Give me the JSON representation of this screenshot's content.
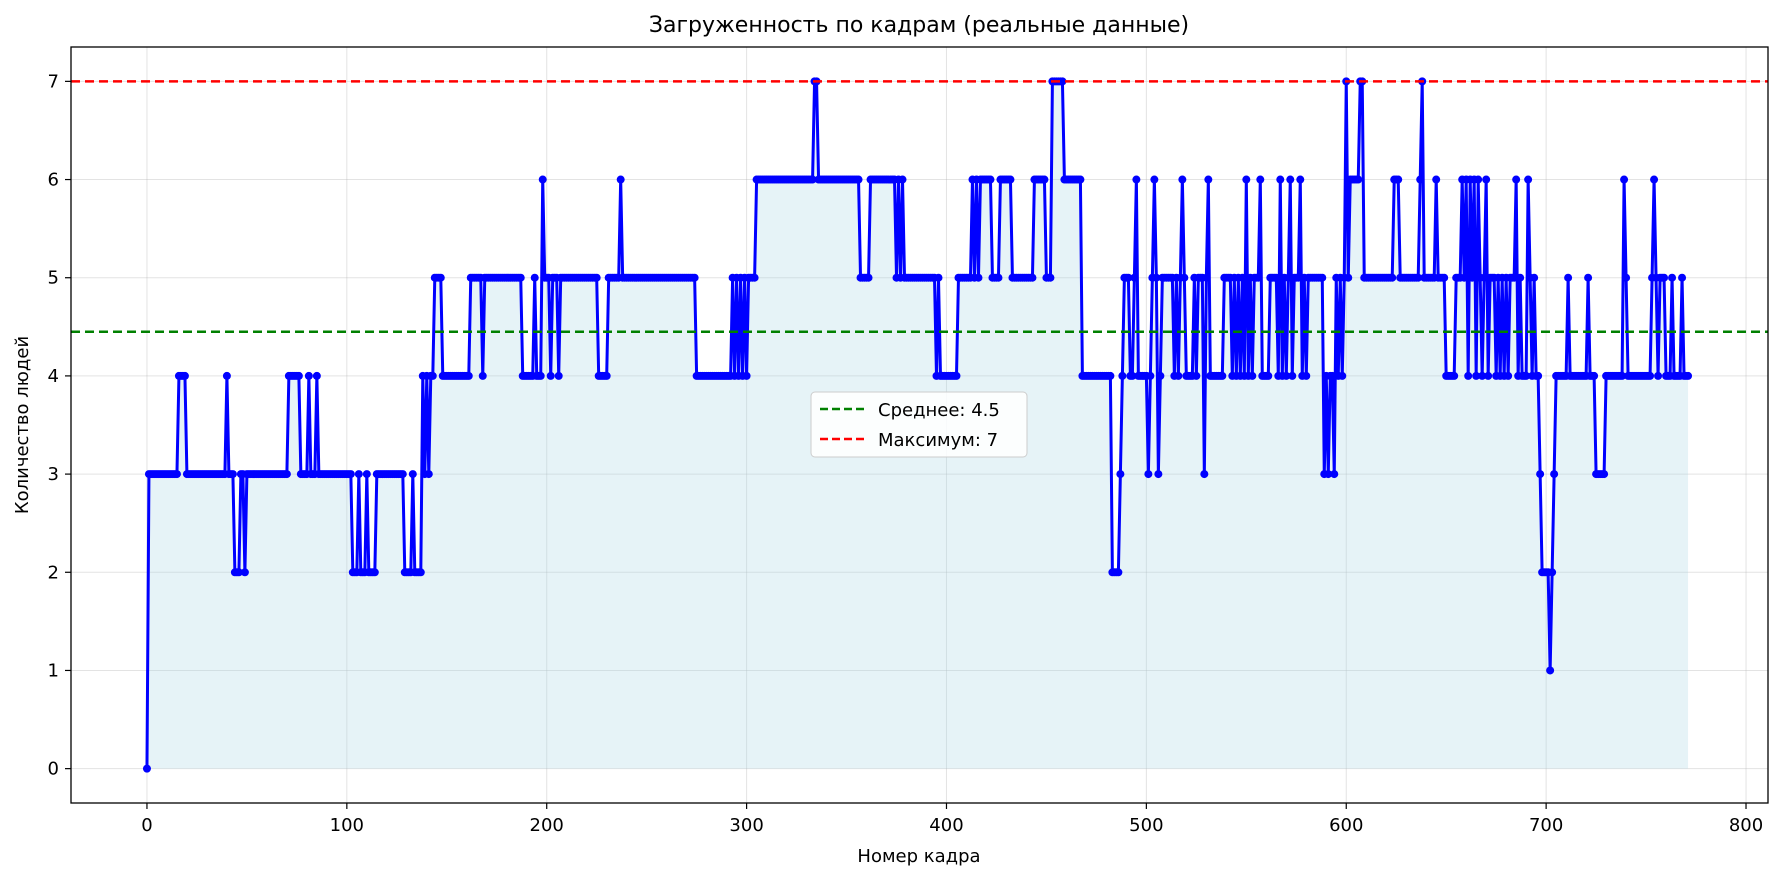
{
  "chart_data": {
    "type": "line",
    "title": "Загруженность по кадрам (реальные данные)",
    "xlabel": "Номер кадра",
    "ylabel": "Количество людей",
    "xlim": [
      -38,
      811
    ],
    "ylim": [
      -0.35,
      7.35
    ],
    "xticks": [
      0,
      100,
      200,
      300,
      400,
      500,
      600,
      700,
      800
    ],
    "yticks": [
      0,
      1,
      2,
      3,
      4,
      5,
      6,
      7
    ],
    "grid": true,
    "legend_position": "center",
    "colors": {
      "line": "#0000ff",
      "fill": "#add8e6",
      "mean": "#008000",
      "max": "#ff0000"
    },
    "reference_lines": [
      {
        "name": "mean",
        "label": "Среднее: 4.5",
        "value": 4.45,
        "color": "#008000"
      },
      {
        "name": "max",
        "label": "Максимум: 7",
        "value": 7,
        "color": "#ff0000"
      }
    ],
    "series": [
      {
        "points": [
          [
            0,
            0
          ],
          [
            1,
            3
          ],
          [
            15,
            3
          ],
          [
            16,
            4
          ],
          [
            19,
            4
          ],
          [
            20,
            3
          ],
          [
            39,
            3
          ],
          [
            40,
            4
          ],
          [
            41,
            3
          ],
          [
            43,
            3
          ],
          [
            44,
            2
          ],
          [
            46,
            2
          ],
          [
            47,
            3
          ],
          [
            48,
            3
          ],
          [
            49,
            2
          ],
          [
            50,
            3
          ],
          [
            70,
            3
          ],
          [
            71,
            4
          ],
          [
            76,
            4
          ],
          [
            77,
            3
          ],
          [
            80,
            3
          ],
          [
            81,
            4
          ],
          [
            82,
            3
          ],
          [
            84,
            3
          ],
          [
            85,
            4
          ],
          [
            86,
            3
          ],
          [
            102,
            3
          ],
          [
            103,
            2
          ],
          [
            105,
            2
          ],
          [
            106,
            3
          ],
          [
            107,
            2
          ],
          [
            109,
            2
          ],
          [
            110,
            3
          ],
          [
            111,
            2
          ],
          [
            114,
            2
          ],
          [
            115,
            3
          ],
          [
            128,
            3
          ],
          [
            129,
            2
          ],
          [
            132,
            2
          ],
          [
            133,
            3
          ],
          [
            134,
            2
          ],
          [
            137,
            2
          ],
          [
            138,
            4
          ],
          [
            139,
            3
          ],
          [
            140,
            4
          ],
          [
            141,
            3
          ],
          [
            142,
            4
          ],
          [
            143,
            4
          ],
          [
            144,
            5
          ],
          [
            147,
            5
          ],
          [
            148,
            4
          ],
          [
            161,
            4
          ],
          [
            162,
            5
          ],
          [
            167,
            5
          ],
          [
            168,
            4
          ],
          [
            169,
            5
          ],
          [
            187,
            5
          ],
          [
            188,
            4
          ],
          [
            193,
            4
          ],
          [
            194,
            5
          ],
          [
            195,
            4
          ],
          [
            197,
            4
          ],
          [
            198,
            6
          ],
          [
            199,
            5
          ],
          [
            201,
            5
          ],
          [
            202,
            4
          ],
          [
            203,
            5
          ],
          [
            205,
            5
          ],
          [
            206,
            4
          ],
          [
            207,
            5
          ],
          [
            225,
            5
          ],
          [
            226,
            4
          ],
          [
            230,
            4
          ],
          [
            231,
            5
          ],
          [
            236,
            5
          ],
          [
            237,
            6
          ],
          [
            238,
            5
          ],
          [
            274,
            5
          ],
          [
            275,
            4
          ],
          [
            292,
            4
          ],
          [
            293,
            5
          ],
          [
            294,
            4
          ],
          [
            295,
            5
          ],
          [
            296,
            4
          ],
          [
            297,
            5
          ],
          [
            298,
            4
          ],
          [
            299,
            5
          ],
          [
            300,
            4
          ],
          [
            301,
            5
          ],
          [
            304,
            5
          ],
          [
            305,
            6
          ],
          [
            333,
            6
          ],
          [
            334,
            7
          ],
          [
            335,
            7
          ],
          [
            336,
            6
          ],
          [
            356,
            6
          ],
          [
            357,
            5
          ],
          [
            361,
            5
          ],
          [
            362,
            6
          ],
          [
            374,
            6
          ],
          [
            375,
            5
          ],
          [
            376,
            6
          ],
          [
            377,
            5
          ],
          [
            378,
            6
          ],
          [
            379,
            5
          ],
          [
            394,
            5
          ],
          [
            395,
            4
          ],
          [
            396,
            5
          ],
          [
            397,
            4
          ],
          [
            405,
            4
          ],
          [
            406,
            5
          ],
          [
            412,
            5
          ],
          [
            413,
            6
          ],
          [
            414,
            5
          ],
          [
            415,
            6
          ],
          [
            416,
            5
          ],
          [
            417,
            6
          ],
          [
            422,
            6
          ],
          [
            423,
            5
          ],
          [
            426,
            5
          ],
          [
            427,
            6
          ],
          [
            432,
            6
          ],
          [
            433,
            5
          ],
          [
            443,
            5
          ],
          [
            444,
            6
          ],
          [
            449,
            6
          ],
          [
            450,
            5
          ],
          [
            452,
            5
          ],
          [
            453,
            7
          ],
          [
            458,
            7
          ],
          [
            459,
            6
          ],
          [
            467,
            6
          ],
          [
            468,
            4
          ],
          [
            482,
            4
          ],
          [
            483,
            2
          ],
          [
            486,
            2
          ],
          [
            487,
            3
          ],
          [
            488,
            4
          ],
          [
            489,
            5
          ],
          [
            491,
            5
          ],
          [
            492,
            4
          ],
          [
            494,
            5
          ],
          [
            495,
            6
          ],
          [
            496,
            4
          ],
          [
            500,
            4
          ],
          [
            501,
            3
          ],
          [
            502,
            4
          ],
          [
            503,
            5
          ],
          [
            504,
            6
          ],
          [
            505,
            5
          ],
          [
            506,
            3
          ],
          [
            507,
            4
          ],
          [
            508,
            5
          ],
          [
            513,
            5
          ],
          [
            514,
            4
          ],
          [
            515,
            5
          ],
          [
            516,
            4
          ],
          [
            517,
            5
          ],
          [
            518,
            6
          ],
          [
            519,
            5
          ],
          [
            520,
            4
          ],
          [
            523,
            4
          ],
          [
            524,
            5
          ],
          [
            525,
            4
          ],
          [
            526,
            5
          ],
          [
            528,
            5
          ],
          [
            529,
            3
          ],
          [
            530,
            5
          ],
          [
            531,
            6
          ],
          [
            532,
            4
          ],
          [
            538,
            4
          ],
          [
            539,
            5
          ],
          [
            542,
            5
          ],
          [
            543,
            4
          ],
          [
            544,
            5
          ],
          [
            545,
            4
          ],
          [
            546,
            5
          ],
          [
            547,
            4
          ],
          [
            548,
            5
          ],
          [
            549,
            4
          ],
          [
            550,
            6
          ],
          [
            551,
            4
          ],
          [
            552,
            5
          ],
          [
            553,
            4
          ],
          [
            554,
            5
          ],
          [
            556,
            5
          ],
          [
            557,
            6
          ],
          [
            558,
            4
          ],
          [
            561,
            4
          ],
          [
            562,
            5
          ],
          [
            565,
            5
          ],
          [
            566,
            4
          ],
          [
            567,
            6
          ],
          [
            568,
            4
          ],
          [
            569,
            5
          ],
          [
            570,
            4
          ],
          [
            571,
            5
          ],
          [
            572,
            6
          ],
          [
            573,
            4
          ],
          [
            574,
            5
          ],
          [
            576,
            5
          ],
          [
            577,
            6
          ],
          [
            578,
            4
          ],
          [
            579,
            5
          ],
          [
            580,
            4
          ],
          [
            581,
            5
          ],
          [
            588,
            5
          ],
          [
            589,
            3
          ],
          [
            590,
            4
          ],
          [
            591,
            3
          ],
          [
            592,
            4
          ],
          [
            593,
            4
          ],
          [
            594,
            3
          ],
          [
            595,
            5
          ],
          [
            596,
            4
          ],
          [
            597,
            5
          ],
          [
            598,
            4
          ],
          [
            599,
            5
          ],
          [
            600,
            7
          ],
          [
            601,
            5
          ],
          [
            602,
            6
          ],
          [
            606,
            6
          ],
          [
            607,
            7
          ],
          [
            608,
            7
          ],
          [
            609,
            5
          ],
          [
            623,
            5
          ],
          [
            624,
            6
          ],
          [
            626,
            6
          ],
          [
            627,
            5
          ],
          [
            636,
            5
          ],
          [
            637,
            6
          ],
          [
            638,
            7
          ],
          [
            639,
            5
          ],
          [
            644,
            5
          ],
          [
            645,
            6
          ],
          [
            646,
            5
          ],
          [
            649,
            5
          ],
          [
            650,
            4
          ],
          [
            654,
            4
          ],
          [
            655,
            5
          ],
          [
            657,
            5
          ],
          [
            658,
            6
          ],
          [
            659,
            5
          ],
          [
            660,
            6
          ],
          [
            661,
            4
          ],
          [
            662,
            6
          ],
          [
            663,
            5
          ],
          [
            664,
            6
          ],
          [
            665,
            4
          ],
          [
            666,
            6
          ],
          [
            667,
            5
          ],
          [
            668,
            4
          ],
          [
            669,
            5
          ],
          [
            670,
            6
          ],
          [
            671,
            4
          ],
          [
            672,
            5
          ],
          [
            674,
            5
          ],
          [
            675,
            4
          ],
          [
            676,
            5
          ],
          [
            677,
            4
          ],
          [
            678,
            5
          ],
          [
            679,
            4
          ],
          [
            680,
            5
          ],
          [
            681,
            4
          ],
          [
            682,
            5
          ],
          [
            684,
            5
          ],
          [
            685,
            6
          ],
          [
            686,
            4
          ],
          [
            687,
            5
          ],
          [
            688,
            4
          ],
          [
            690,
            4
          ],
          [
            691,
            6
          ],
          [
            692,
            5
          ],
          [
            693,
            4
          ],
          [
            694,
            5
          ],
          [
            695,
            4
          ],
          [
            696,
            4
          ],
          [
            697,
            3
          ],
          [
            698,
            2
          ],
          [
            701,
            2
          ],
          [
            702,
            1
          ],
          [
            703,
            2
          ],
          [
            704,
            3
          ],
          [
            705,
            4
          ],
          [
            710,
            4
          ],
          [
            711,
            5
          ],
          [
            712,
            4
          ],
          [
            720,
            4
          ],
          [
            721,
            5
          ],
          [
            722,
            4
          ],
          [
            724,
            4
          ],
          [
            725,
            3
          ],
          [
            729,
            3
          ],
          [
            730,
            4
          ],
          [
            738,
            4
          ],
          [
            739,
            6
          ],
          [
            740,
            5
          ],
          [
            741,
            4
          ],
          [
            752,
            4
          ],
          [
            753,
            5
          ],
          [
            754,
            6
          ],
          [
            755,
            5
          ],
          [
            756,
            4
          ],
          [
            757,
            5
          ],
          [
            759,
            5
          ],
          [
            760,
            4
          ],
          [
            762,
            4
          ],
          [
            763,
            5
          ],
          [
            764,
            4
          ],
          [
            767,
            4
          ],
          [
            768,
            5
          ],
          [
            769,
            4
          ],
          [
            771,
            4
          ]
        ]
      }
    ]
  }
}
